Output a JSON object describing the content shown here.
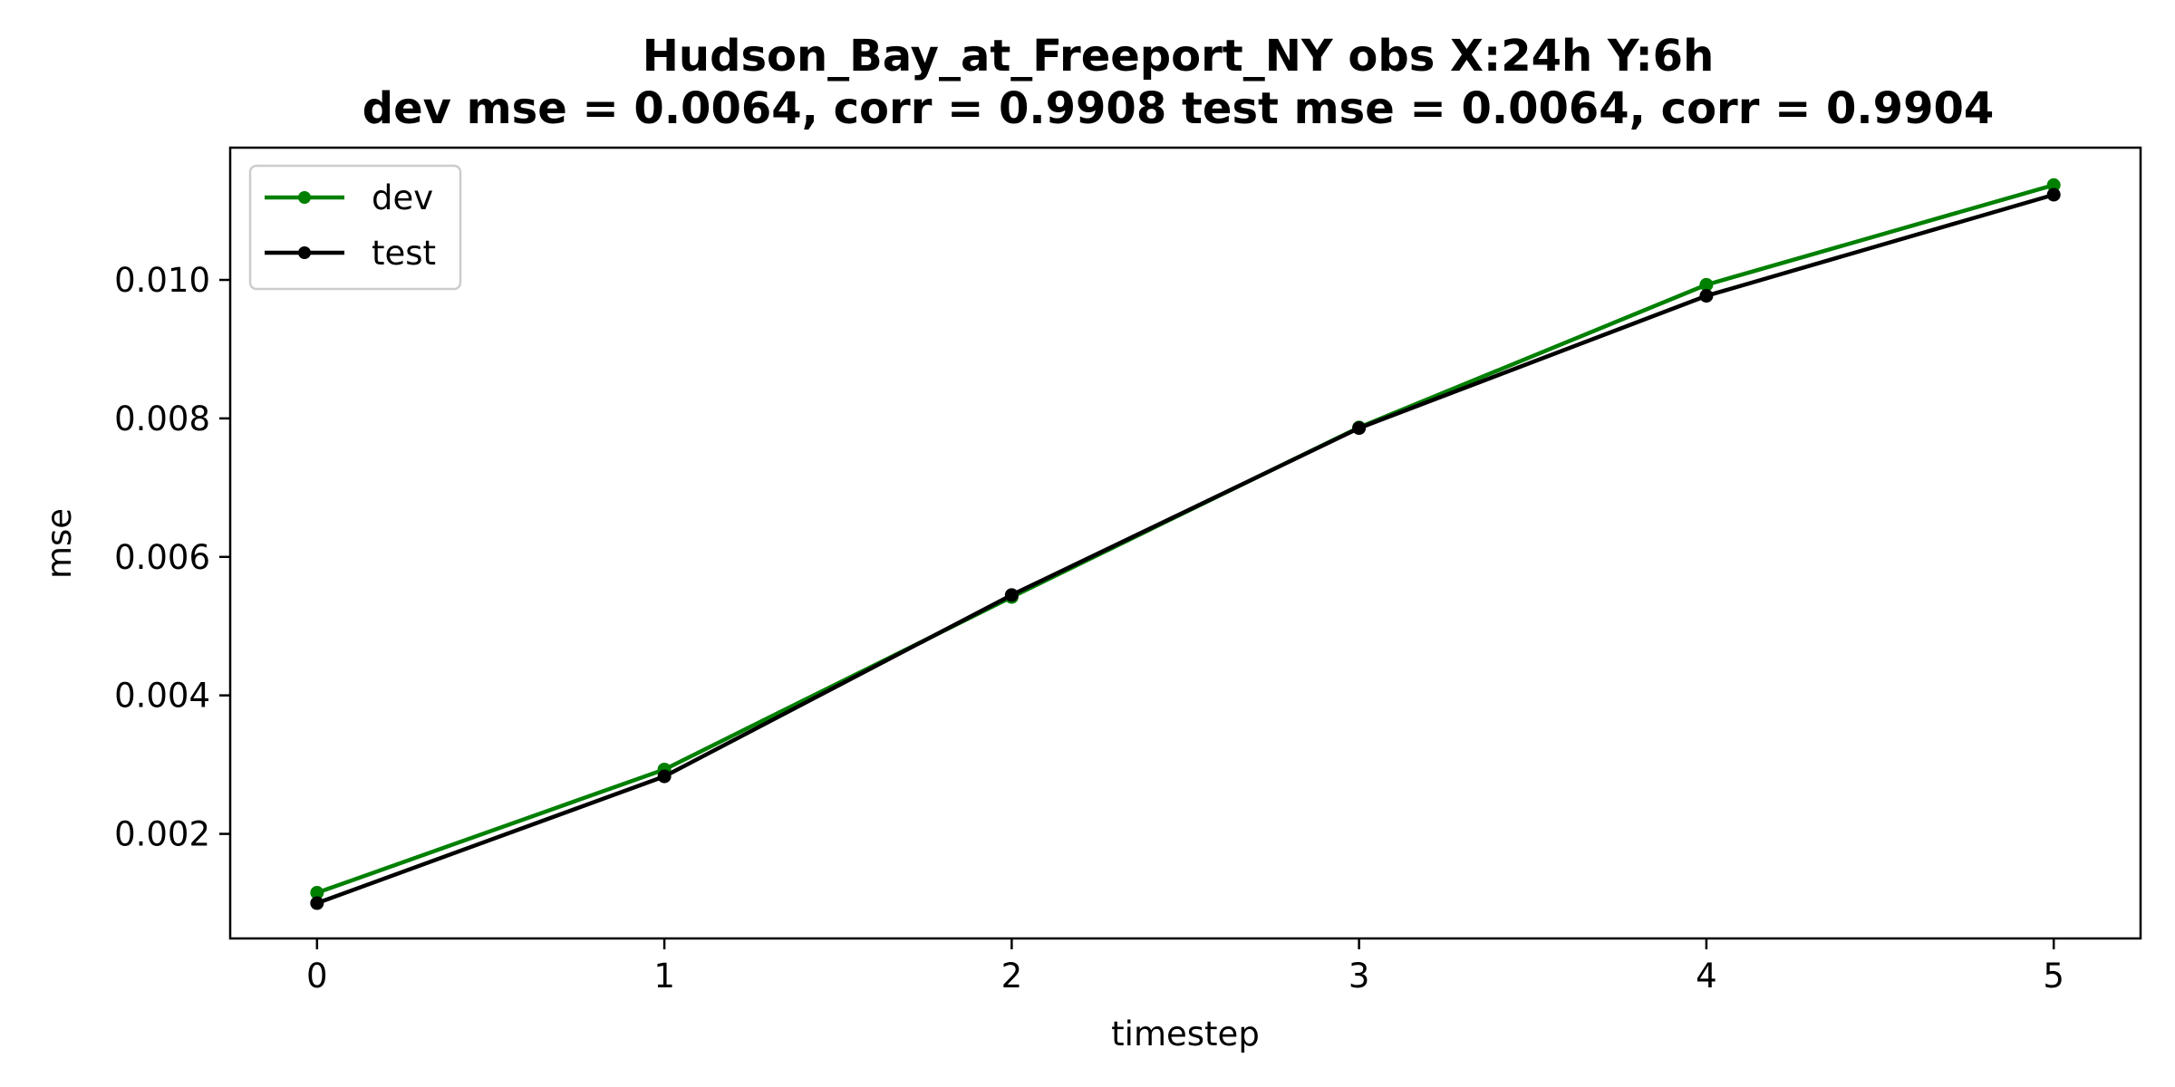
{
  "chart_data": {
    "type": "line",
    "title": "Hudson_Bay_at_Freeport_NY   obs   X:24h   Y:6h",
    "subtitle": "dev mse = 0.0064, corr = 0.9908   test mse = 0.0064, corr = 0.9904",
    "xlabel": "timestep",
    "ylabel": "mse",
    "x": [
      0,
      1,
      2,
      3,
      4,
      5
    ],
    "x_ticks": [
      "0",
      "1",
      "2",
      "3",
      "4",
      "5"
    ],
    "y_ticks": [
      "0.002",
      "0.004",
      "0.006",
      "0.008",
      "0.010"
    ],
    "y_tick_values": [
      0.002,
      0.004,
      0.006,
      0.008,
      0.01
    ],
    "xlim": [
      -0.25,
      5.25
    ],
    "ylim": [
      0.00049,
      0.01191
    ],
    "grid": false,
    "legend_position": "upper-left",
    "series": [
      {
        "name": "dev",
        "color": "#008000",
        "marker": "circle",
        "values": [
          0.00115,
          0.00293,
          0.00542,
          0.00787,
          0.00993,
          0.01137
        ]
      },
      {
        "name": "test",
        "color": "#000000",
        "marker": "circle",
        "values": [
          0.001,
          0.00283,
          0.00545,
          0.00786,
          0.00977,
          0.01123
        ]
      }
    ]
  }
}
